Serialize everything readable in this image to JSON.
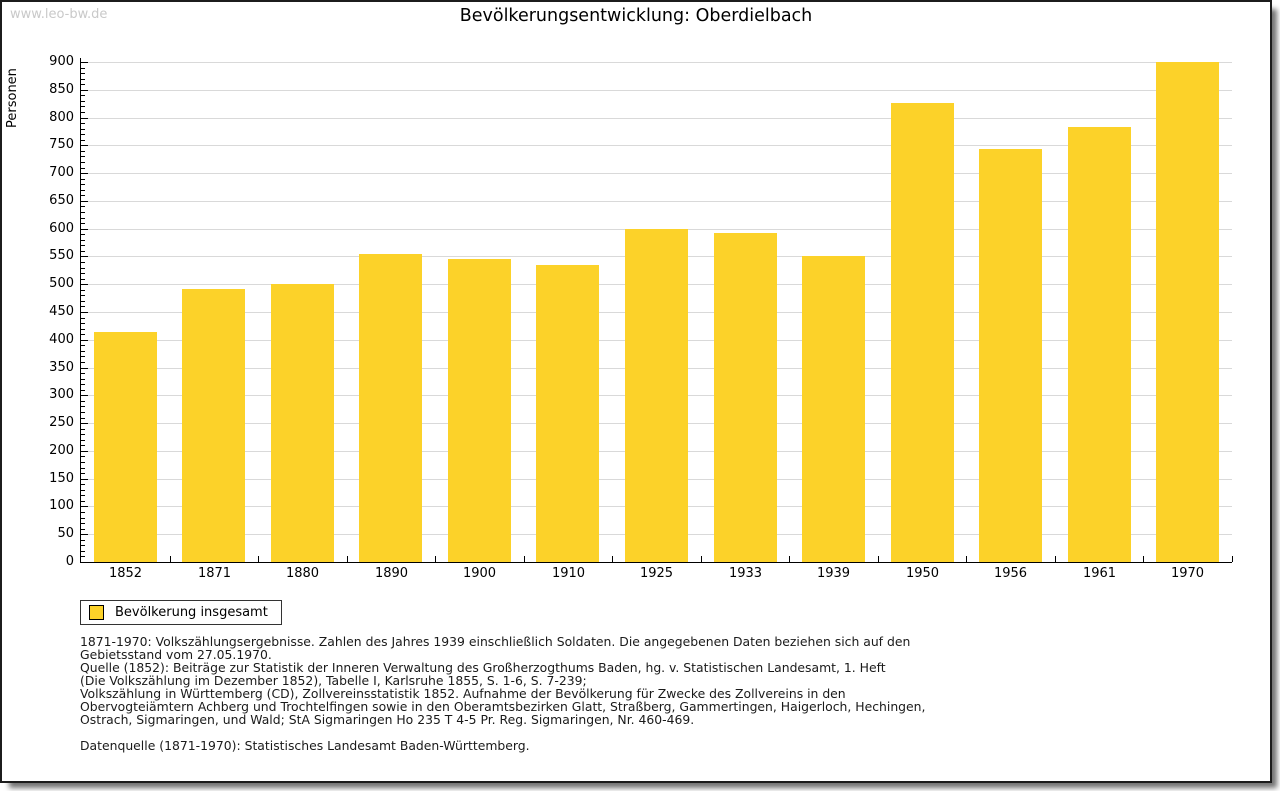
{
  "page": {
    "watermark": "www.leo-bw.de",
    "title": "Bevölkerungsentwicklung: Oberdielbach"
  },
  "chart_data": {
    "type": "bar",
    "title": "Bevölkerungsentwicklung: Oberdielbach",
    "ylabel": "Personen",
    "xlabel": "",
    "categories": [
      "1852",
      "1871",
      "1880",
      "1890",
      "1900",
      "1910",
      "1925",
      "1933",
      "1939",
      "1950",
      "1956",
      "1961",
      "1970"
    ],
    "values": [
      414,
      491,
      500,
      554,
      546,
      534,
      600,
      592,
      550,
      827,
      744,
      783,
      900
    ],
    "ylim": [
      0,
      900
    ],
    "ytick_step": 50,
    "yminor_step": 10,
    "grid": "horizontal-major",
    "legend_position": "bottom-left",
    "series_name": "Bevölkerung insgesamt"
  },
  "legend": {
    "label": "Bevölkerung insgesamt"
  },
  "colors": {
    "bar": "#fcd229",
    "grid": "#d9d9d9",
    "axis": "#000000",
    "watermark": "#c9c9c9",
    "page_border": "#1c1c1c"
  },
  "footnotes": {
    "lines": [
      "1871-1970: Volkszählungsergebnisse. Zahlen des Jahres 1939 einschließlich Soldaten. Die angegebenen Daten beziehen sich auf den",
      "Gebietsstand vom 27.05.1970.",
      "Quelle (1852): Beiträge zur Statistik der Inneren Verwaltung des Großherzogthums Baden, hg. v. Statistischen Landesamt, 1. Heft",
      "(Die Volkszählung im Dezember 1852), Tabelle I, Karlsruhe 1855, S. 1-6, S. 7-239;",
      "Volkszählung in Württemberg (CD), Zollvereinsstatistik 1852. Aufnahme der Bevölkerung für Zwecke des Zollvereins in den",
      "Obervogteiämtern Achberg und Trochtelfingen sowie in den Oberamtsbezirken Glatt, Straßberg, Gammertingen, Haigerloch, Hechingen,",
      "Ostrach, Sigmaringen, und Wald; StA Sigmaringen Ho 235 T 4-5 Pr. Reg. Sigmaringen, Nr. 460-469.",
      "",
      "Datenquelle (1871-1970): Statistisches Landesamt Baden-Württemberg."
    ]
  }
}
